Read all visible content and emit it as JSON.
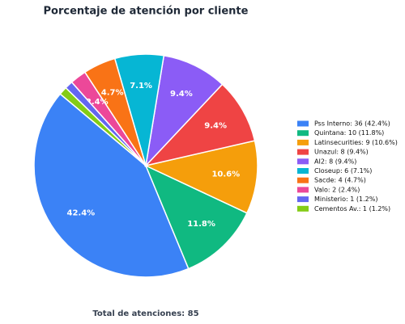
{
  "chart_data": {
    "type": "pie",
    "title": "Porcentaje de atención por cliente",
    "categories": [
      "Pss Interno: 36 (42.4%)",
      "Quintana: 10 (11.8%)",
      "Latinsecurities: 9 (10.6%)",
      "Unazul: 8 (9.4%)",
      "AI2: 8 (9.4%)",
      "Closeup: 6 (7.1%)",
      "Sacde: 4 (4.7%)",
      "Valo: 2 (2.4%)",
      "Ministerio: 1 (1.2%)",
      "Cementos Av.: 1 (1.2%)"
    ],
    "values": [
      36,
      10,
      9,
      8,
      8,
      6,
      4,
      2,
      1,
      1
    ],
    "value_labels": [
      "42.4%",
      "11.8%",
      "10.6%",
      "9.4%",
      "9.4%",
      "7.1%",
      "4.7%",
      "2.4%",
      null,
      null
    ],
    "colors": [
      "#3b82f6",
      "#10b981",
      "#f59e0b",
      "#ef4444",
      "#8b5cf6",
      "#06b6d4",
      "#f97316",
      "#ec4899",
      "#6366f1",
      "#84cc16"
    ],
    "legend": "right",
    "footer": "Total de atenciones: 85"
  }
}
